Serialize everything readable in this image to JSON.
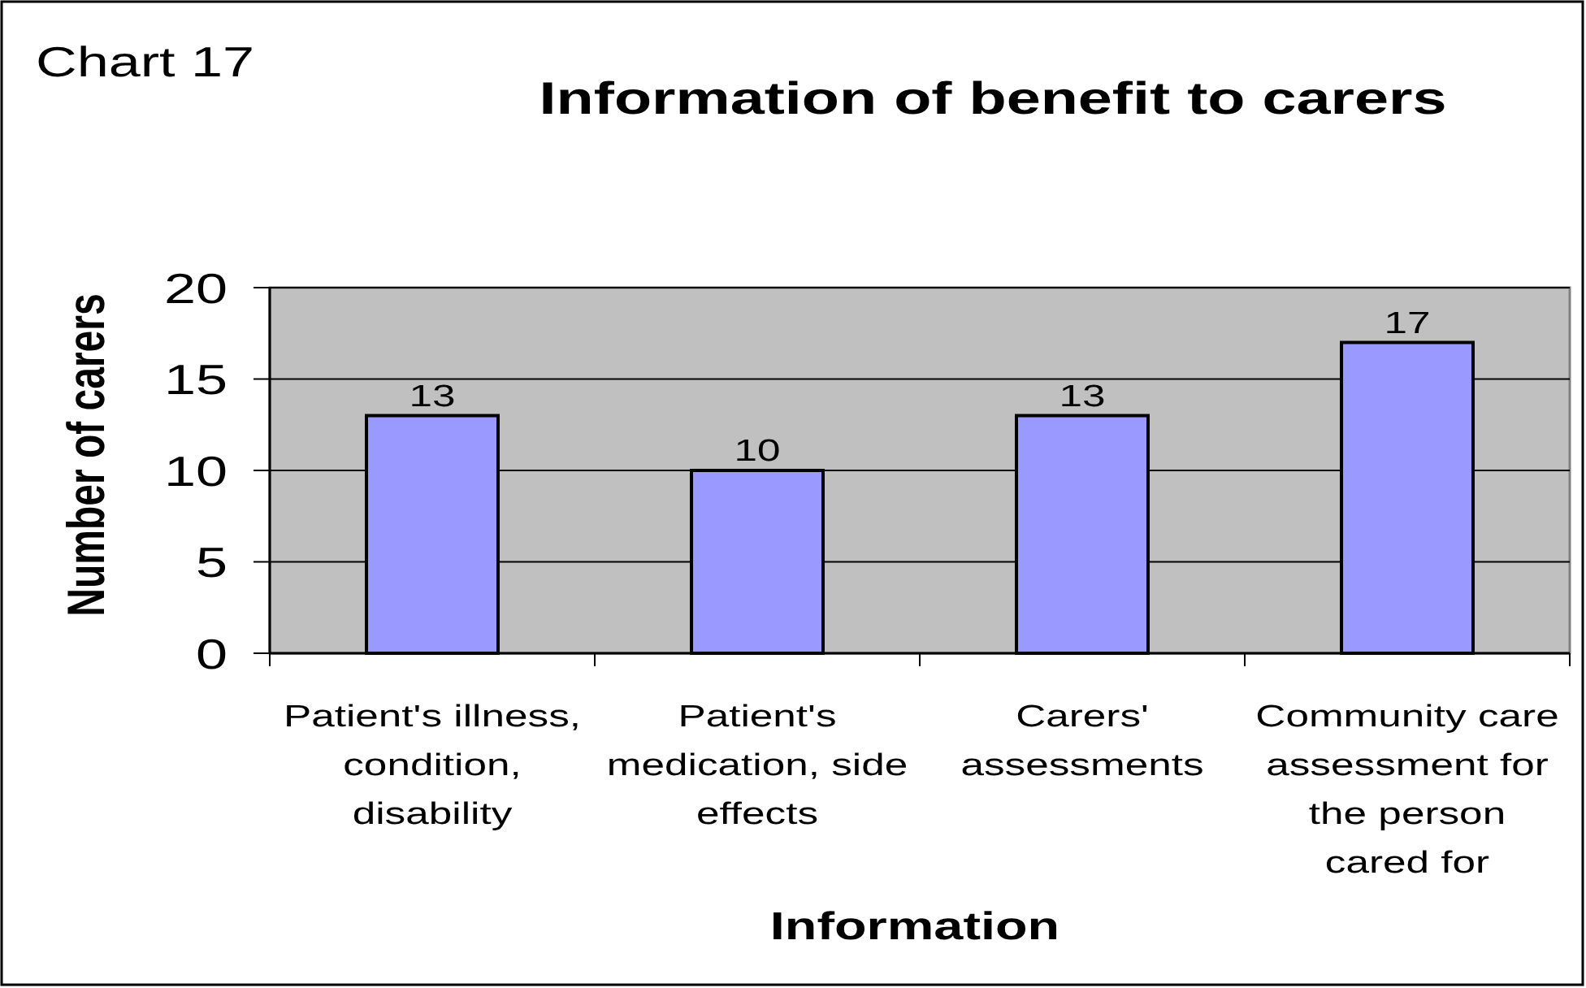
{
  "chart_data": {
    "type": "bar",
    "title": "Information of benefit to carers",
    "annotations": [
      "Chart 17"
    ],
    "xlabel": "Information",
    "ylabel": "Number of carers",
    "categories": [
      "Patient's illness, condition, disability",
      "Patient's medication, side effects",
      "Carers' assessments",
      "Community care assessment for the person cared for"
    ],
    "values": [
      13,
      10,
      13,
      17
    ],
    "color": "#9999ff",
    "ylim": [
      0,
      20
    ],
    "yticks": [
      0,
      5,
      10,
      15,
      20
    ],
    "grid": "y",
    "data_labels": true
  }
}
